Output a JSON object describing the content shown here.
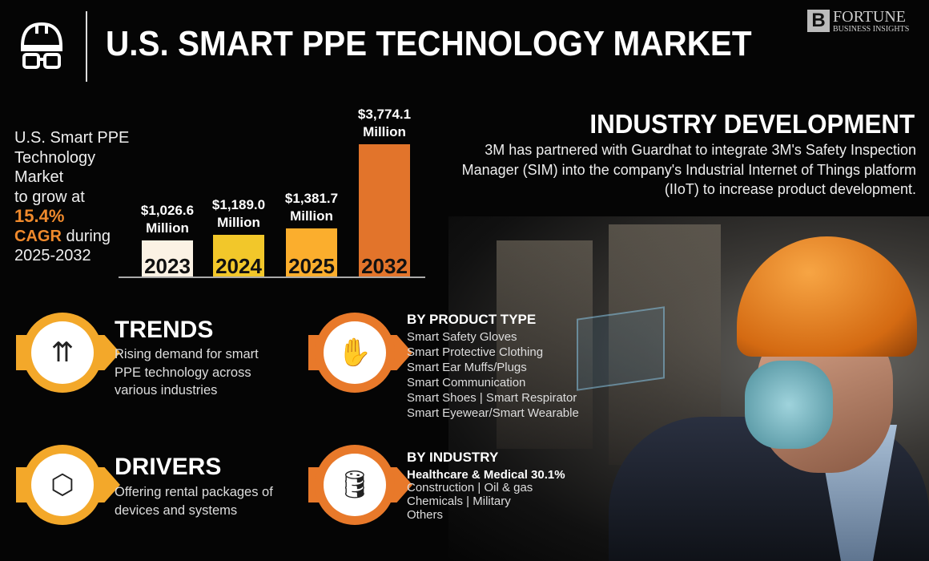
{
  "header": {
    "title": "U.S. SMART PPE TECHNOLOGY MARKET",
    "logo_line1": "FORTUNE",
    "logo_line2": "BUSINESS INSIGHTS",
    "icon": "hardhat-goggles-icon"
  },
  "summary": {
    "line1": "U.S. Smart PPE",
    "line2": "Technology",
    "line3": "Market",
    "line4": "to grow at",
    "cagr_value": "15.4%",
    "cagr_label": "CAGR",
    "cagr_suffix": " during",
    "period": "2025-2032"
  },
  "chart_data": {
    "type": "bar",
    "categories": [
      "2023",
      "2024",
      "2025",
      "2032"
    ],
    "values": [
      1026.6,
      1189.0,
      1381.7,
      3774.1
    ],
    "data_labels": [
      [
        "$1,026.6",
        "Million"
      ],
      [
        "$1,189.0",
        "Million"
      ],
      [
        "$1,381.7",
        "Million"
      ],
      [
        "$3,774.1",
        "Million"
      ]
    ],
    "colors": [
      "#fbf2e4",
      "#f2c72a",
      "#fbae2d",
      "#e2742b"
    ],
    "title": "",
    "xlabel": "",
    "ylabel": "",
    "grid": false
  },
  "industry_development": {
    "title": "INDUSTRY DEVELOPMENT",
    "text": "3M has partnered with Guardhat to integrate 3M's Safety Inspection Manager (SIM) into the company's Industrial Internet of Things platform (IIoT) to increase product development."
  },
  "trends": {
    "title": "TRENDS",
    "text": "Rising demand for smart PPE technology across various industries",
    "icon": "growth-gear-icon"
  },
  "drivers": {
    "title": "DRIVERS",
    "text": "Offering rental packages of devices and systems",
    "icon": "box-icon"
  },
  "product_type": {
    "title": "BY PRODUCT TYPE",
    "icon": "gloves-icon",
    "items": [
      "Smart Safety Gloves",
      "Smart Protective Clothing",
      "Smart Ear Muffs/Plugs",
      "Smart Communication",
      "Smart Shoes  |  Smart Respirator",
      "Smart Eyewear/Smart Wearable"
    ]
  },
  "industry": {
    "title": "BY INDUSTRY",
    "icon": "oil-barrel-icon",
    "highlight": "Healthcare & Medical 30.1%",
    "items": [
      "Construction  |  Oil & gas",
      "Chemicals  |  Military",
      "Others"
    ]
  }
}
